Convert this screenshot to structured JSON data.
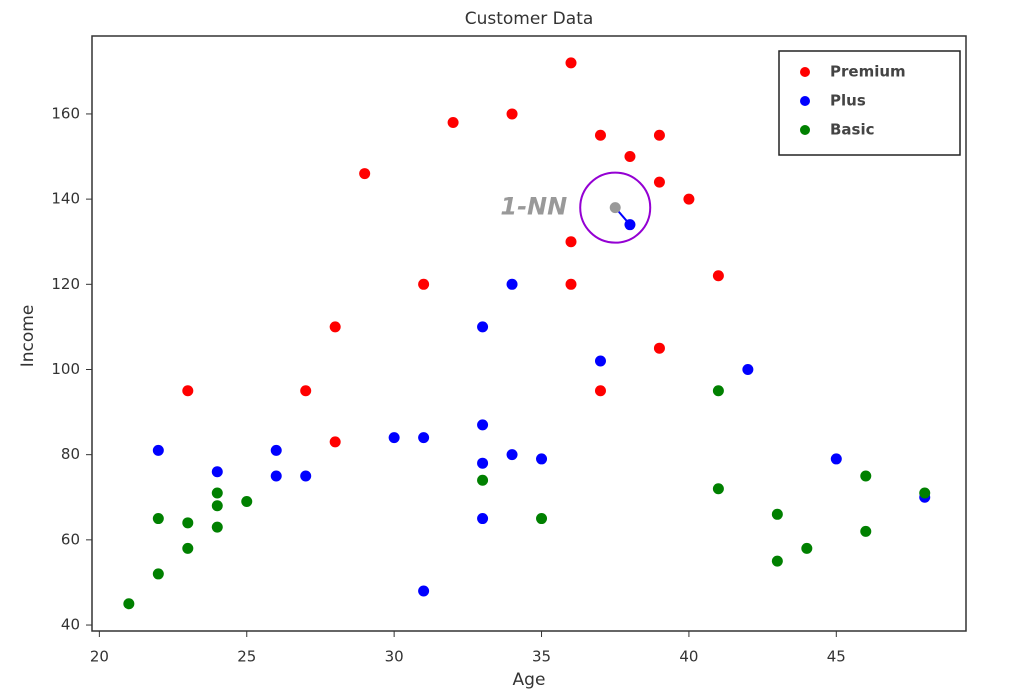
{
  "chart_data": {
    "type": "scatter",
    "title": "Customer Data",
    "x_label": "Age",
    "y_label": "Income",
    "xlim": [
      19.75,
      49.4
    ],
    "ylim": [
      38.6,
      178.3
    ],
    "xticks": [
      20,
      25,
      30,
      35,
      40,
      45
    ],
    "yticks": [
      40,
      60,
      80,
      100,
      120,
      140,
      160
    ],
    "legend_position": "upper right",
    "series": [
      {
        "name": "Premium",
        "color": "#ff0000",
        "x": [
          36,
          34,
          32,
          37,
          39,
          38,
          29,
          39,
          40,
          36,
          41,
          31,
          36,
          28,
          39,
          23,
          27,
          37,
          28
        ],
        "y": [
          172,
          160,
          158,
          155,
          155,
          150,
          146,
          144,
          140,
          130,
          122,
          120,
          120,
          110,
          105,
          95,
          95,
          95,
          83
        ]
      },
      {
        "name": "Plus",
        "color": "#0000ff",
        "x": [
          34,
          33,
          37,
          42,
          33,
          22,
          26,
          30,
          31,
          34,
          35,
          33,
          24,
          26,
          27,
          45,
          33,
          48,
          31,
          38
        ],
        "y": [
          120,
          110,
          102,
          100,
          87,
          81,
          81,
          84,
          84,
          80,
          79,
          78,
          76,
          75,
          75,
          79,
          65,
          70,
          48,
          134
        ]
      },
      {
        "name": "Basic",
        "color": "#008000",
        "x": [
          41,
          33,
          46,
          41,
          48,
          24,
          25,
          24,
          22,
          23,
          35,
          24,
          43,
          46,
          23,
          44,
          43,
          22,
          21
        ],
        "y": [
          95,
          74,
          75,
          72,
          71,
          71,
          69,
          68,
          65,
          64,
          65,
          63,
          66,
          62,
          58,
          58,
          55,
          52,
          45
        ]
      }
    ],
    "query": {
      "x": 37.5,
      "y": 138,
      "color": "#999999",
      "neighbor_series": 1,
      "neighbor_index": 19,
      "circle_color": "#9400d3"
    },
    "annotation": "1-NN"
  }
}
